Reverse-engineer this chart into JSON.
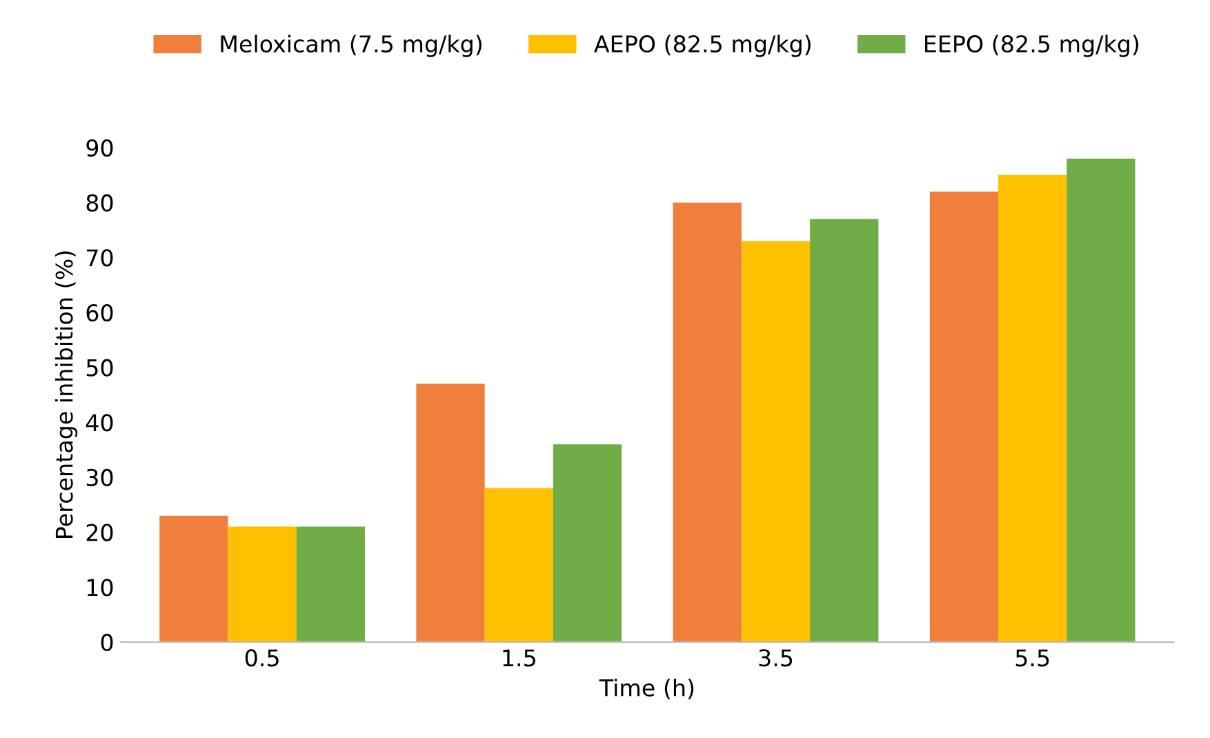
{
  "chart_data": {
    "type": "bar",
    "xlabel": "Time (h)",
    "ylabel": "Percentage inhibition (%)",
    "categories": [
      "0.5",
      "1.5",
      "3.5",
      "5.5"
    ],
    "series": [
      {
        "name": "Meloxicam (7.5 mg/kg)",
        "color": "#f07f3c",
        "values": [
          23,
          47,
          80,
          82
        ]
      },
      {
        "name": "AEPO (82.5 mg/kg)",
        "color": "#ffc000",
        "values": [
          21,
          28,
          73,
          85
        ]
      },
      {
        "name": "EEPO (82.5 mg/kg)",
        "color": "#70ad47",
        "values": [
          21,
          36,
          77,
          88
        ]
      }
    ],
    "ylim": [
      0,
      90
    ],
    "yticks": [
      0,
      10,
      20,
      30,
      40,
      50,
      60,
      70,
      80,
      90
    ],
    "grid": false,
    "legend": "top"
  }
}
